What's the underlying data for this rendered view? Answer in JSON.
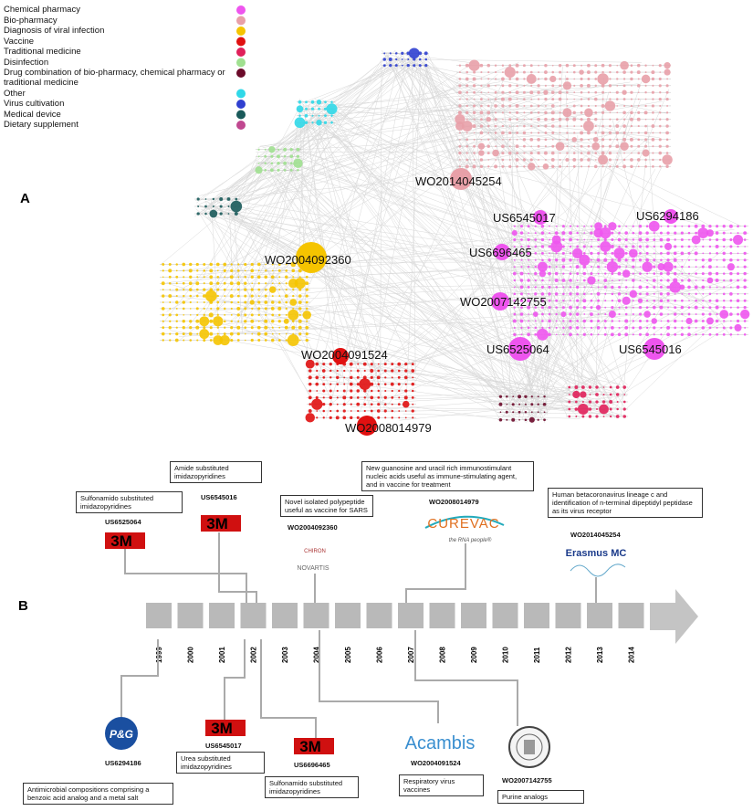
{
  "panel_labels": [
    "A",
    "B"
  ],
  "legend": [
    {
      "label": "Chemical pharmacy",
      "color": "#ee55ee"
    },
    {
      "label": "Bio-pharmacy",
      "color": "#e8a0a8"
    },
    {
      "label": "Diagnosis of viral infection",
      "color": "#f5c400"
    },
    {
      "label": "Vaccine",
      "color": "#e01010"
    },
    {
      "label": "Traditional medicine",
      "color": "#e0205a"
    },
    {
      "label": "Disinfection",
      "color": "#a0e090"
    },
    {
      "label": "Drug combination of bio-pharmacy, chemical pharmacy or traditional medicine",
      "color": "#6b0a2a"
    },
    {
      "label": "Other",
      "color": "#30d8e8"
    },
    {
      "label": "Virus cultivation",
      "color": "#3040d0"
    },
    {
      "label": "Medical device",
      "color": "#1a5a5a"
    },
    {
      "label": "Dietary supplement",
      "color": "#c04890"
    }
  ],
  "network_labels": [
    "WO2014045254",
    "US6545017",
    "US6294186",
    "US6696465",
    "WO2004092360",
    "WO2007142755",
    "US6525064",
    "US6545016",
    "WO2004091524",
    "WO2008014979"
  ],
  "timeline": {
    "years": [
      "1999",
      "2000",
      "2001",
      "2002",
      "2003",
      "2004",
      "2005",
      "2006",
      "2007",
      "2008",
      "2009",
      "2010",
      "2011",
      "2012",
      "2013",
      "2014"
    ]
  },
  "patents_top": [
    {
      "description": "Sulfonamido substituted imidazopyridines",
      "number": "US6525064",
      "logos": [
        "3M"
      ]
    },
    {
      "description": "Amide substituted imidazopyridines",
      "number": "US6545016",
      "logos": [
        "3M"
      ]
    },
    {
      "description": "Novel isolated polypeptide useful as vaccine for SARS",
      "number": "WO2004092360",
      "logos": [
        "CHIRON",
        "NOVARTIS"
      ]
    },
    {
      "description": "New guanosine and uracil rich immunostimulant nucleic acids useful as immune-stimulating agent, and in vaccine for treatment",
      "number": "WO2008014979",
      "logos": [
        "CUREVAC",
        "the RNA people®"
      ]
    },
    {
      "description": "Human betacoronavirus lineage c and identification of n-terminal dipeptidyl peptidase as its virus receptor",
      "number": "WO2014045254",
      "logos": [
        "Erasmus MC"
      ]
    }
  ],
  "patents_bottom": [
    {
      "description": "Antimicrobial compositions comprising a benzoic acid analog and a metal salt",
      "number": "US6294186",
      "logos": [
        "P&G"
      ]
    },
    {
      "description": "Urea substituted imidazopyridines",
      "number": "US6545017",
      "logos": [
        "3M"
      ]
    },
    {
      "description": "Sulfonamido substituted imidazopyridines",
      "number": "US6696465",
      "logos": [
        "3M"
      ]
    },
    {
      "description": "Respiratory virus vaccines",
      "number": "WO2004091524",
      "logos": [
        "Acambis"
      ]
    },
    {
      "description": "Purine analogs",
      "number": "WO2007142755",
      "logos": []
    }
  ]
}
